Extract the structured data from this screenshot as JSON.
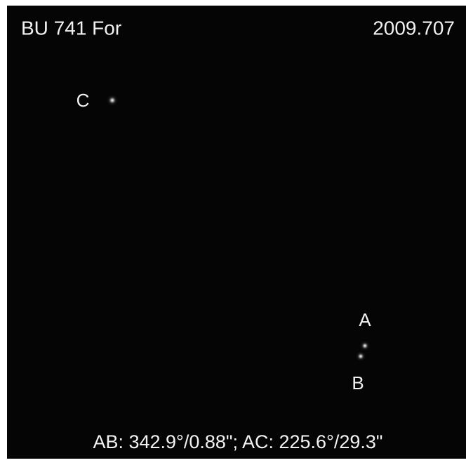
{
  "header": {
    "title": "BU 741 For",
    "epoch": "2009.707"
  },
  "labels": {
    "c": "C",
    "a": "A",
    "b": "B"
  },
  "caption": "AB: 342.9°/0.88\"; AC: 225.6°/29.3\""
}
